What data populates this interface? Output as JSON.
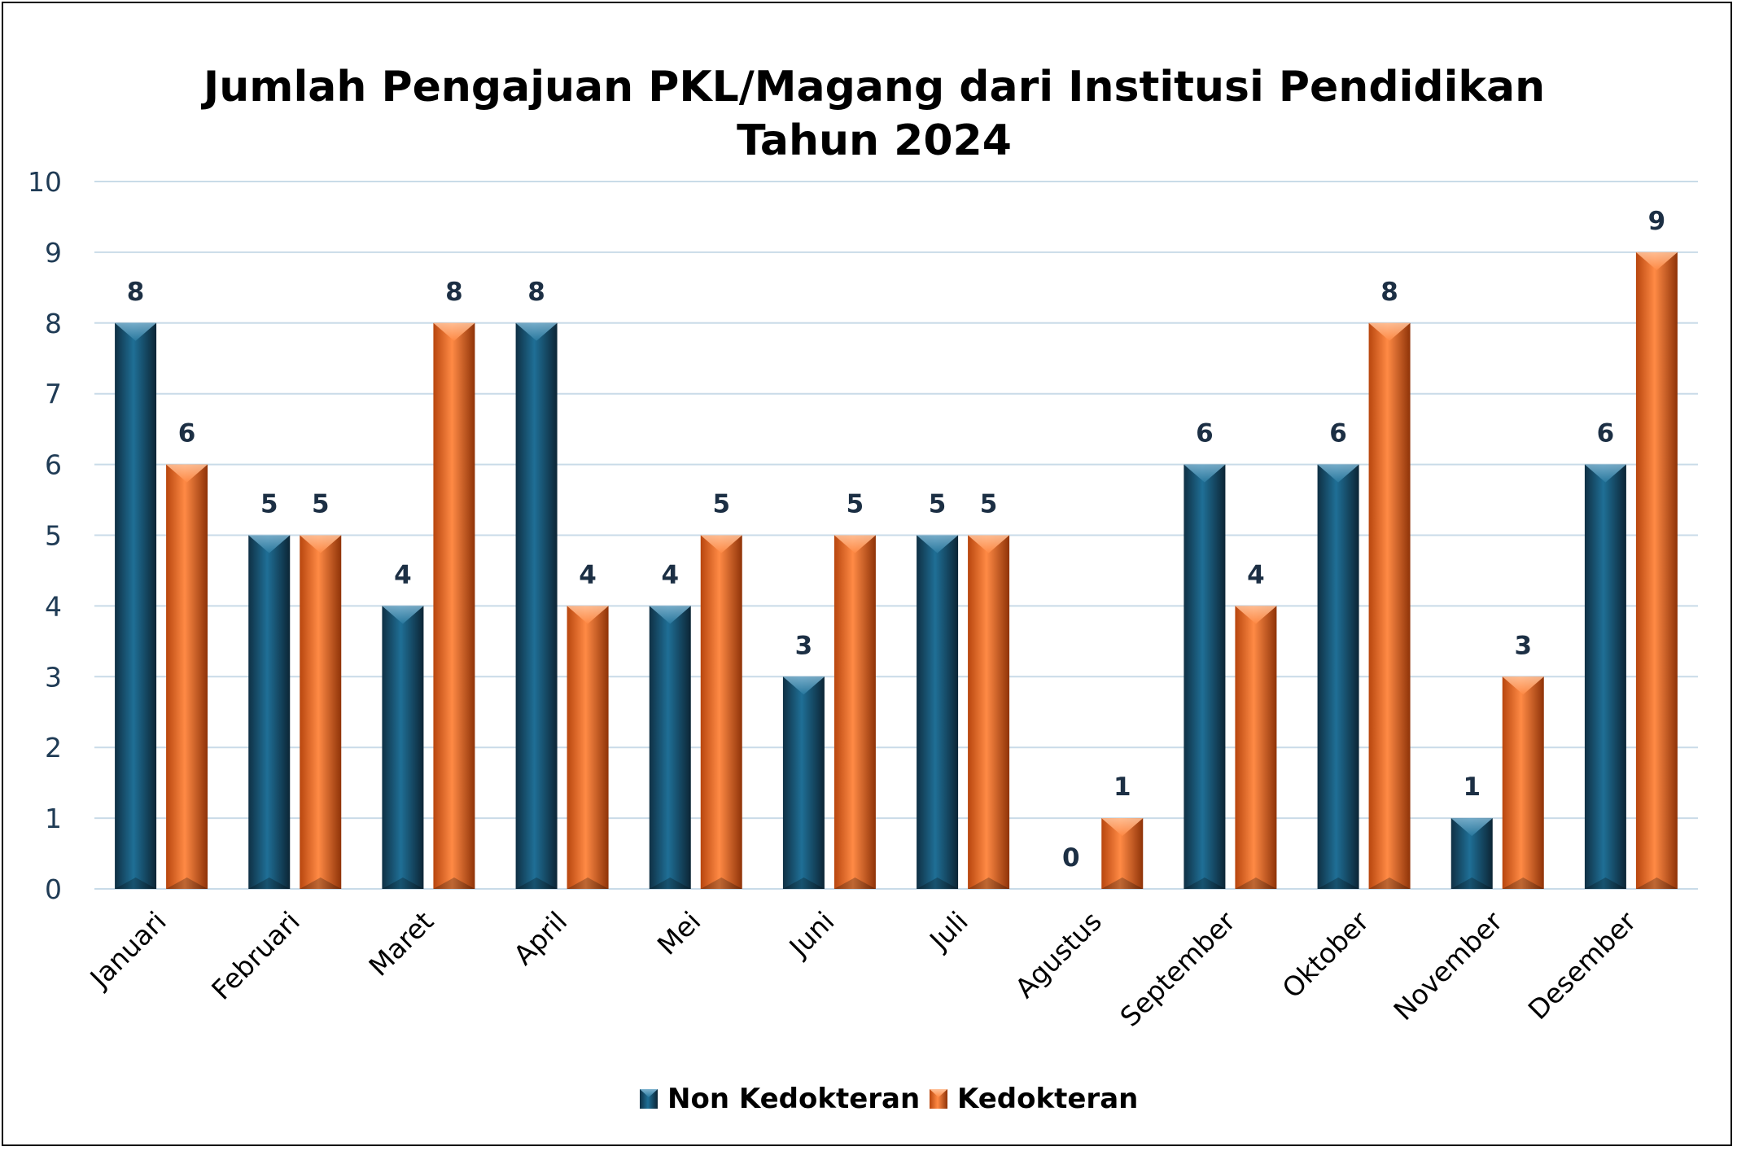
{
  "chart_data": {
    "type": "bar",
    "title": [
      "Jumlah Pengajuan PKL/Magang dari Institusi Pendidikan",
      "Tahun 2024"
    ],
    "categories": [
      "Januari",
      "Februari",
      "Maret",
      "April",
      "Mei",
      "Juni",
      "Juli",
      "Agustus",
      "September",
      "Oktober",
      "November",
      "Desember"
    ],
    "series": [
      {
        "name": "Non Kedokteran",
        "values": [
          8,
          5,
          4,
          8,
          4,
          3,
          5,
          0,
          6,
          6,
          1,
          6
        ],
        "color": "#1b5a7a"
      },
      {
        "name": "Kedokteran",
        "values": [
          6,
          5,
          8,
          4,
          5,
          5,
          5,
          1,
          4,
          8,
          3,
          9
        ],
        "color": "#f06a22"
      }
    ],
    "ylim": [
      0,
      10
    ],
    "yticks": [
      0,
      1,
      2,
      3,
      4,
      5,
      6,
      7,
      8,
      9,
      10
    ],
    "grid": true,
    "data_labels": true,
    "legend_position": "bottom"
  }
}
